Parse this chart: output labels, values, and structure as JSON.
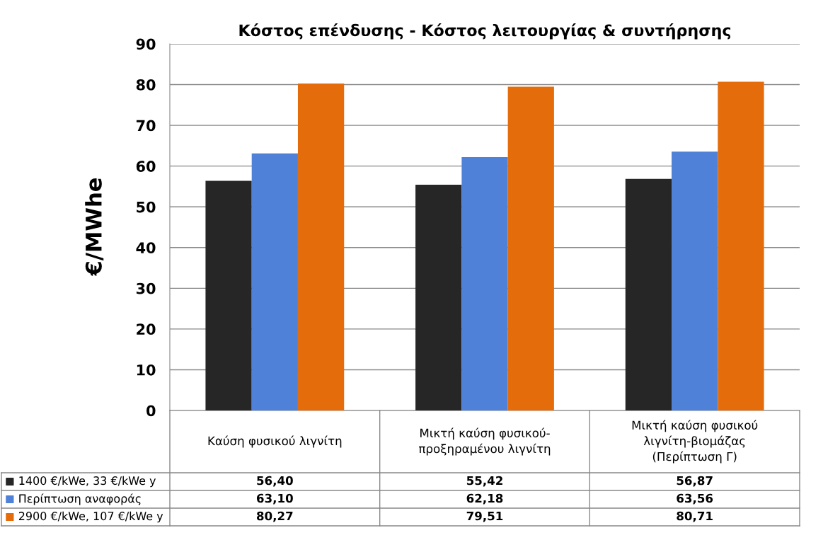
{
  "chart_data": {
    "type": "bar",
    "title": "Κόστος επένδυσης - Κόστος λειτουργίας & συντήρησης",
    "ylabel": "€/MWhe",
    "categories": [
      "Καύση φυσικού λιγνίτη",
      "Μικτή καύση φυσικού-\nπροξηραμένου λιγνίτη",
      "Μικτή καύση φυσικού\nλιγνίτη-βιομάζας\n(Περίπτωση Γ)"
    ],
    "series": [
      {
        "name": "1400 €/kWe, 33 €/kWe y",
        "color": "#262626",
        "values": [
          56.4,
          55.42,
          56.87
        ],
        "value_labels": [
          "56,40",
          "55,42",
          "56,87"
        ]
      },
      {
        "name": "Περίπτωση αναφοράς",
        "color": "#4f81d8",
        "values": [
          63.1,
          62.18,
          63.56
        ],
        "value_labels": [
          "63,10",
          "62,18",
          "63,56"
        ]
      },
      {
        "name": "2900 €/kWe, 107 €/kWe y",
        "color": "#e46c0a",
        "values": [
          80.27,
          79.51,
          80.71
        ],
        "value_labels": [
          "80,27",
          "79,51",
          "80,71"
        ]
      }
    ],
    "ylim": [
      0,
      90
    ],
    "yticks": [
      0,
      10,
      20,
      30,
      40,
      50,
      60,
      70,
      80,
      90
    ],
    "grid": "y",
    "legend": "bottom"
  }
}
